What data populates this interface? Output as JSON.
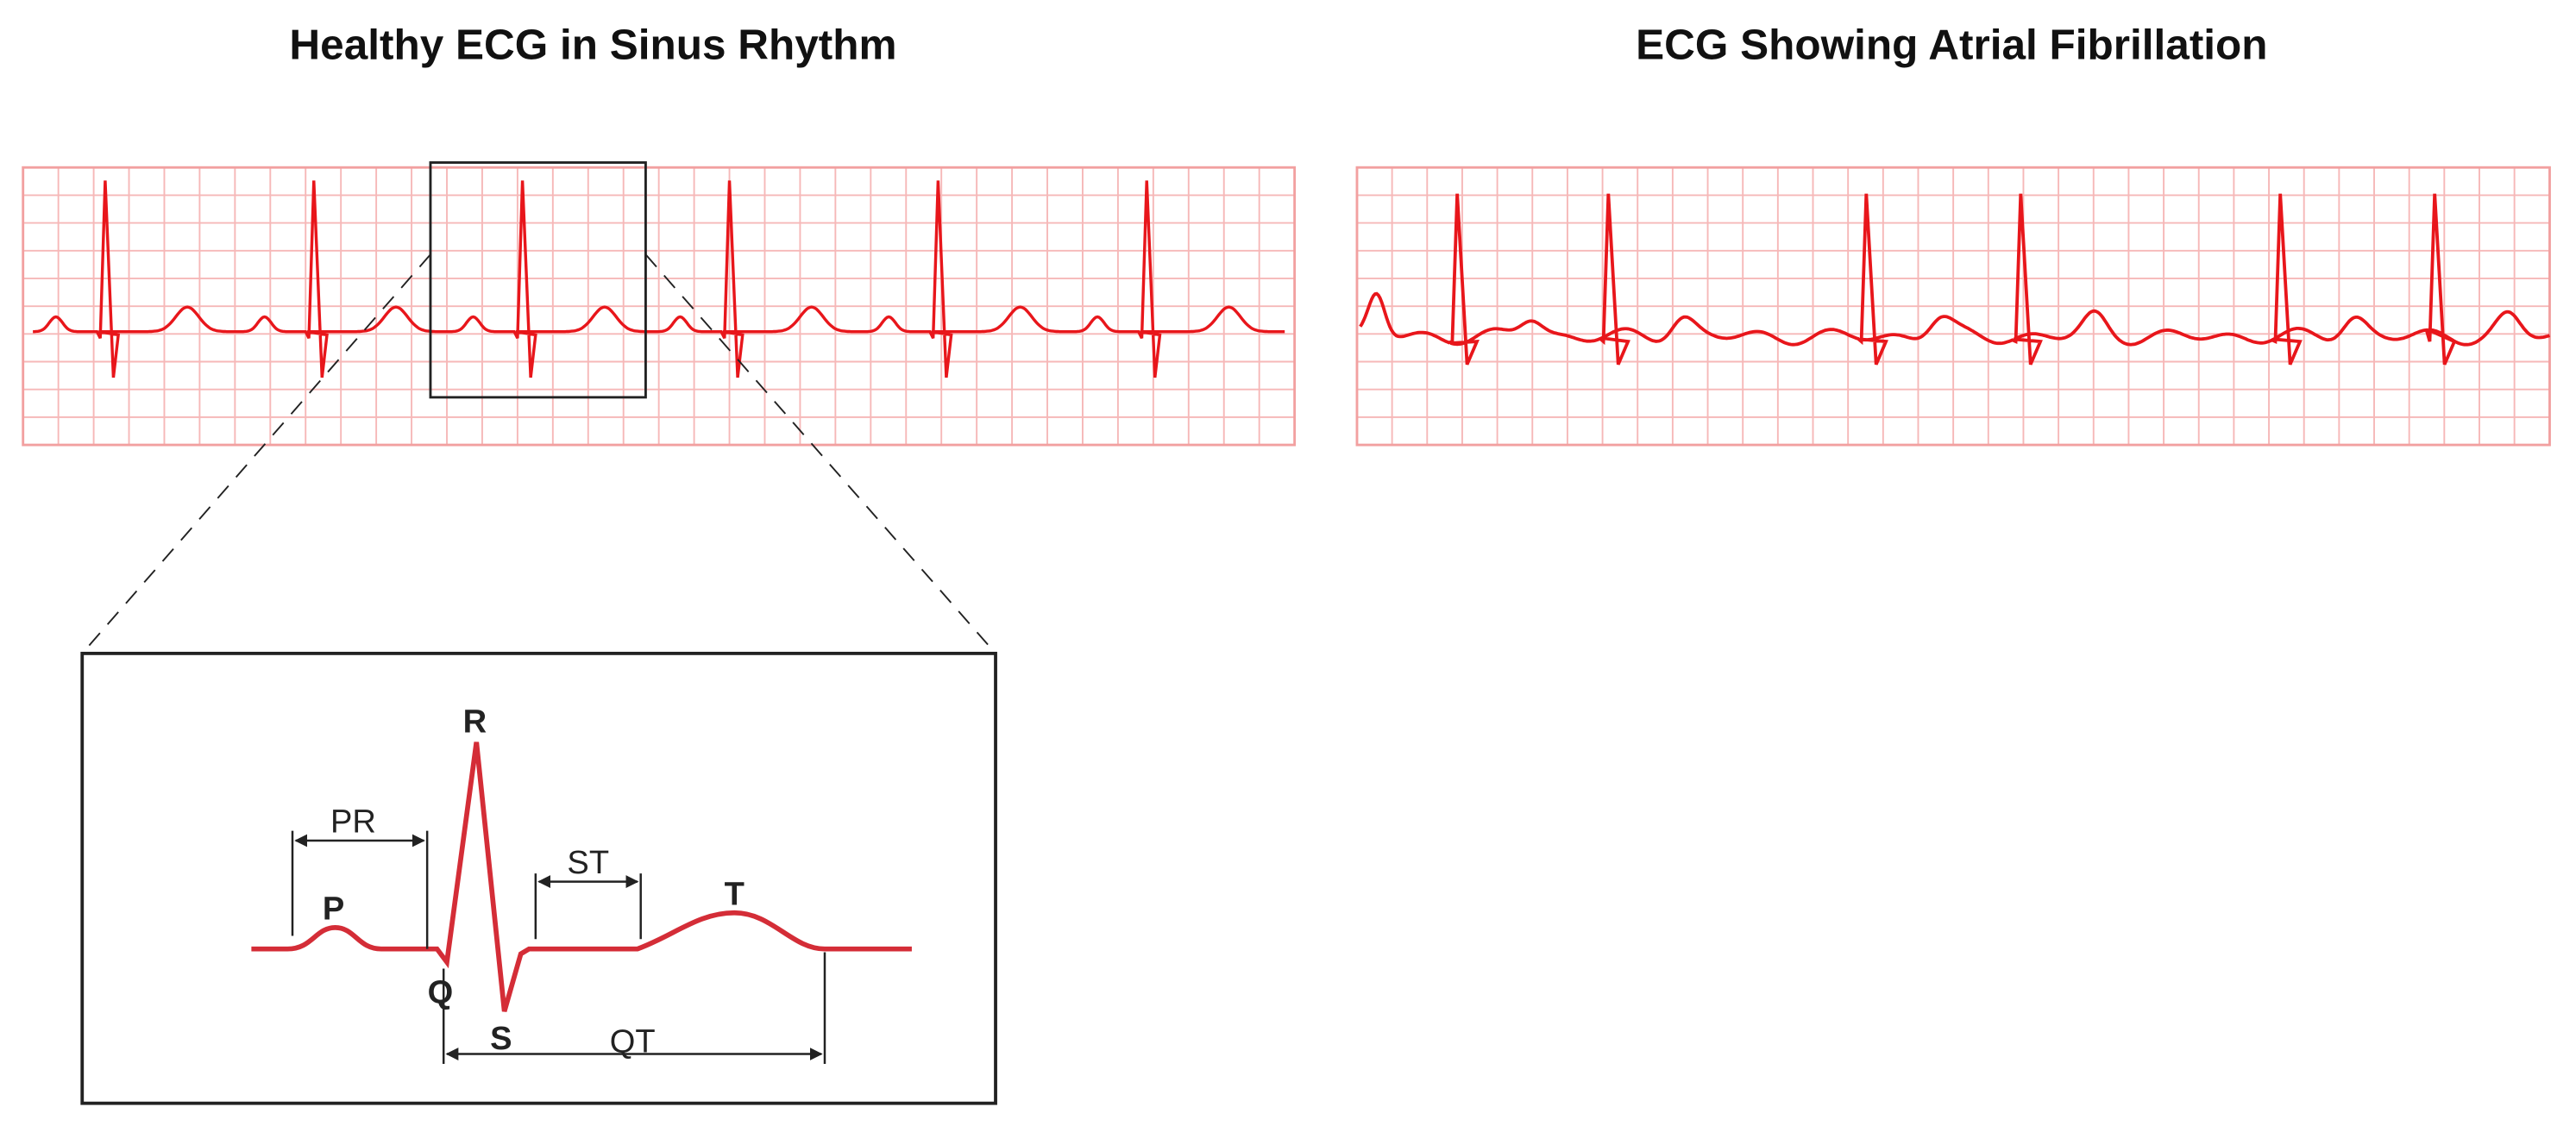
{
  "panels": [
    {
      "title": "Healthy ECG in Sinus Rhythm"
    },
    {
      "title": "ECG Showing Atrial Fibrillation"
    }
  ],
  "zoom": {
    "waves": {
      "p": "P",
      "q": "Q",
      "r": "R",
      "s": "S",
      "t": "T"
    },
    "intervals": {
      "pr": "PR",
      "st": "ST",
      "qt": "QT"
    }
  }
}
